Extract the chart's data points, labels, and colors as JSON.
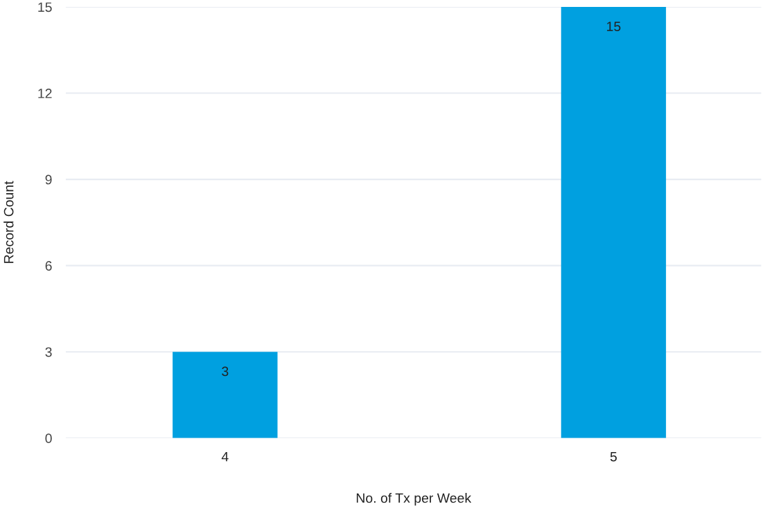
{
  "chart_data": {
    "type": "bar",
    "xlabel": "No. of Tx per Week",
    "ylabel": "Record Count",
    "categories": [
      "4",
      "5"
    ],
    "values": [
      3,
      15
    ],
    "color": "#00a0e0",
    "ylim": [
      0,
      15
    ],
    "yticks": [
      0,
      3,
      6,
      9,
      12,
      15
    ],
    "grid": "y",
    "data_labels": true
  }
}
